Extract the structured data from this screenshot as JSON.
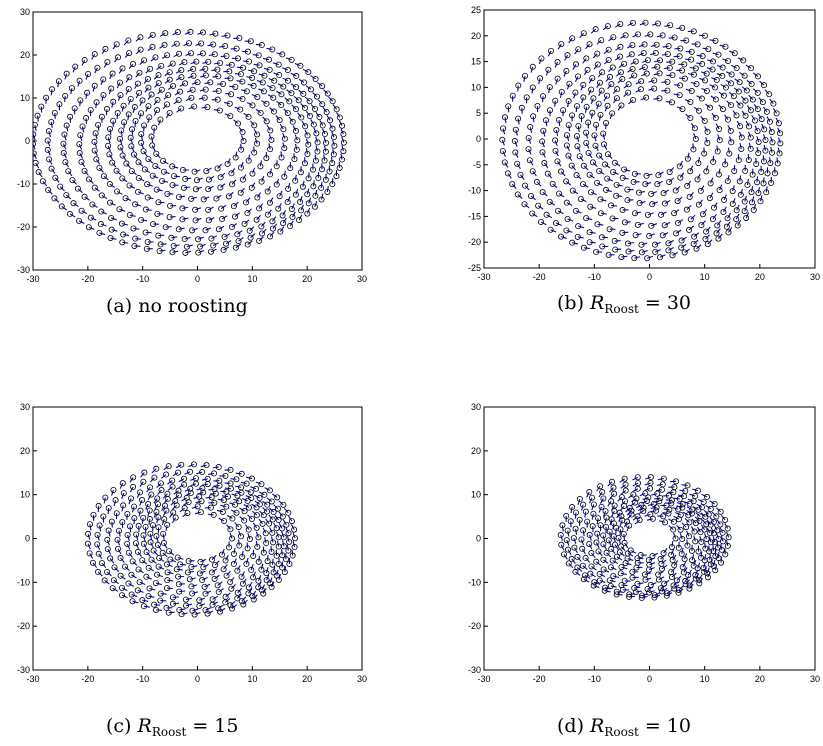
{
  "chart_data": [
    {
      "type": "scatter",
      "panel": "a",
      "caption": {
        "label": "(a)",
        "text": "no roosting"
      },
      "xlim": [
        -30,
        30
      ],
      "ylim": [
        -30,
        30
      ],
      "xticks": [
        -30,
        -20,
        -10,
        0,
        10,
        20,
        30
      ],
      "yticks": [
        -30,
        -20,
        -10,
        0,
        10,
        20,
        30
      ],
      "grid": false,
      "marker_color": "#000000",
      "arrow_color": "#0000cc",
      "inner_radius": 8,
      "outer_radius": 27,
      "num_rings": 10,
      "rotation": "counterclockwise"
    },
    {
      "type": "scatter",
      "panel": "b",
      "caption": {
        "label": "(b)",
        "symbol": "R",
        "subscript": "Roost",
        "value": "= 30"
      },
      "xlim": [
        -30,
        30
      ],
      "ylim": [
        -25,
        25
      ],
      "xticks": [
        -30,
        -20,
        -10,
        0,
        10,
        20,
        30
      ],
      "yticks": [
        -25,
        -20,
        -15,
        -10,
        -5,
        0,
        5,
        10,
        15,
        20,
        25
      ],
      "grid": false,
      "marker_color": "#000000",
      "arrow_color": "#0000cc",
      "inner_radius": 8,
      "outer_radius": 24,
      "num_rings": 10,
      "rotation": "counterclockwise"
    },
    {
      "type": "scatter",
      "panel": "c",
      "caption": {
        "label": "(c)",
        "symbol": "R",
        "subscript": "Roost",
        "value": "= 15"
      },
      "xlim": [
        -30,
        30
      ],
      "ylim": [
        -30,
        30
      ],
      "xticks": [
        -30,
        -20,
        -10,
        0,
        10,
        20,
        30
      ],
      "yticks": [
        -30,
        -20,
        -10,
        0,
        10,
        20,
        30
      ],
      "grid": false,
      "marker_color": "#000000",
      "arrow_color": "#0000cc",
      "inner_radius": 6,
      "outer_radius": 18,
      "num_rings": 10,
      "rotation": "counterclockwise"
    },
    {
      "type": "scatter",
      "panel": "d",
      "caption": {
        "label": "(d)",
        "symbol": "R",
        "subscript": "Roost",
        "value": "= 10"
      },
      "xlim": [
        -30,
        30
      ],
      "ylim": [
        -30,
        30
      ],
      "xticks": [
        -30,
        -20,
        -10,
        0,
        10,
        20,
        30
      ],
      "yticks": [
        -30,
        -20,
        -10,
        0,
        10,
        20,
        30
      ],
      "grid": false,
      "marker_color": "#000000",
      "arrow_color": "#0000cc",
      "inner_radius": 4.5,
      "outer_radius": 14.5,
      "num_rings": 11,
      "rotation": "counterclockwise"
    }
  ]
}
